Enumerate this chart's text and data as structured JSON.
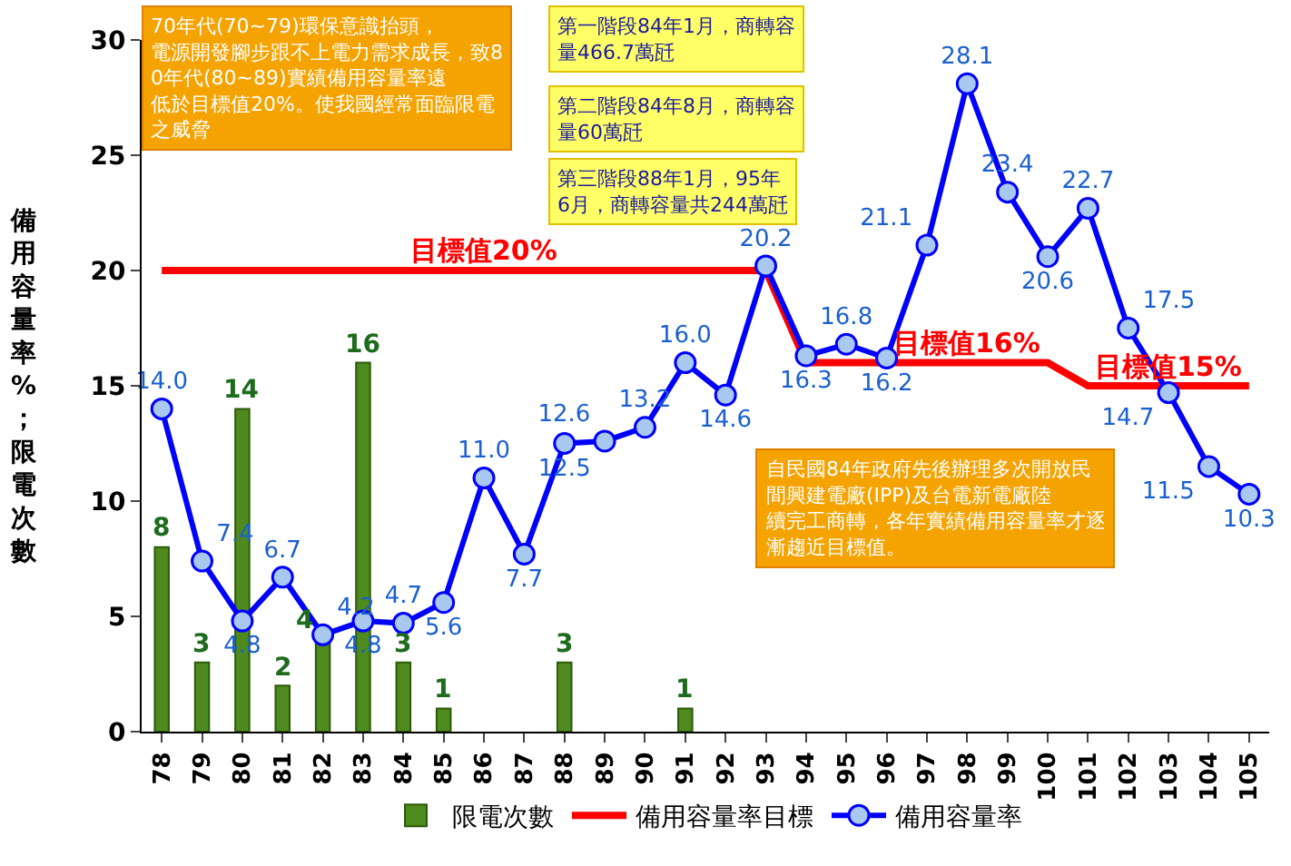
{
  "chart_data": {
    "type": "bar",
    "ylabel": "備用容量率%；限電次數",
    "categories": [
      "78",
      "79",
      "80",
      "81",
      "82",
      "83",
      "84",
      "85",
      "86",
      "87",
      "88",
      "89",
      "90",
      "91",
      "92",
      "93",
      "94",
      "95",
      "96",
      "97",
      "98",
      "99",
      "100",
      "101",
      "102",
      "103",
      "104",
      "105"
    ],
    "series": [
      {
        "name": "限電次數",
        "color": "#4f8a1e",
        "values": [
          8,
          3,
          14,
          2,
          4,
          16,
          3,
          1,
          null,
          null,
          3,
          null,
          null,
          1,
          null,
          null,
          null,
          null,
          null,
          null,
          null,
          null,
          null,
          null,
          null,
          null,
          null,
          null
        ],
        "value_labels": [
          "8",
          "3",
          "14",
          "2",
          "4",
          "16",
          "3",
          "1",
          null,
          null,
          "3",
          null,
          null,
          "1",
          null,
          null,
          null,
          null,
          null,
          null,
          null,
          null,
          null,
          null,
          null,
          null,
          null,
          null
        ]
      },
      {
        "name": "備用容量率目標",
        "type": "line",
        "color": "#ff0000",
        "marker": "none",
        "values": [
          20,
          20,
          20,
          20,
          20,
          20,
          20,
          20,
          20,
          20,
          20,
          20,
          20,
          20,
          20,
          20,
          16,
          16,
          16,
          16,
          16,
          16,
          16,
          15,
          15,
          15,
          15,
          15
        ]
      },
      {
        "name": "備用容量率",
        "type": "line",
        "color": "#0000ff",
        "marker": "circle",
        "values": [
          14.0,
          7.4,
          4.8,
          6.7,
          4.2,
          4.8,
          4.7,
          5.6,
          11.0,
          7.7,
          12.5,
          12.6,
          13.2,
          16.0,
          14.6,
          20.2,
          16.3,
          16.8,
          16.2,
          21.1,
          28.1,
          23.4,
          20.6,
          22.7,
          17.5,
          14.7,
          11.5,
          10.3
        ],
        "value_labels": [
          "14.0",
          "7.4",
          "4.8",
          "6.7",
          "4.2",
          "4.8",
          "4.7",
          "5.6",
          "11.0",
          "7.7",
          "12.5",
          "12.6",
          "13.2",
          "16.0",
          "14.6",
          "20.2",
          "16.3",
          "16.8",
          "16.2",
          "21.1",
          "28.1",
          "23.4",
          "20.6",
          "22.7",
          "17.5",
          "14.7",
          "11.5",
          "10.3"
        ]
      }
    ],
    "ylim": [
      0,
      30
    ],
    "yticks": [
      0,
      5,
      10,
      15,
      20,
      25,
      30
    ],
    "grid": false,
    "legend": "bottom",
    "annotations": [
      "70年代(70~79)環保意識抬頭，電源開發腳步跟不上電力需求成長，致80年代(80~89)實績備用容量率遠低於目標值20%。使我國經常面臨限電之威脅",
      "第一階段84年1月，商轉容量466.7萬瓩",
      "第二階段84年8月，商轉容量60萬瓩",
      "第三階段88年1月，95年6月，商轉容量共244萬瓩",
      "自民國84年政府先後辦理多次開放民間興建電廠(IPP)及台電新電廠陸續完工商轉，各年實績備用容量率才逐漸趨近目標值。",
      {
        "text": "目標值20%",
        "x": "86",
        "y": 20
      },
      {
        "text": "目標值16%",
        "x": "98",
        "y": 16
      },
      {
        "text": "目標值15%",
        "x": "103",
        "y": 15
      }
    ]
  }
}
